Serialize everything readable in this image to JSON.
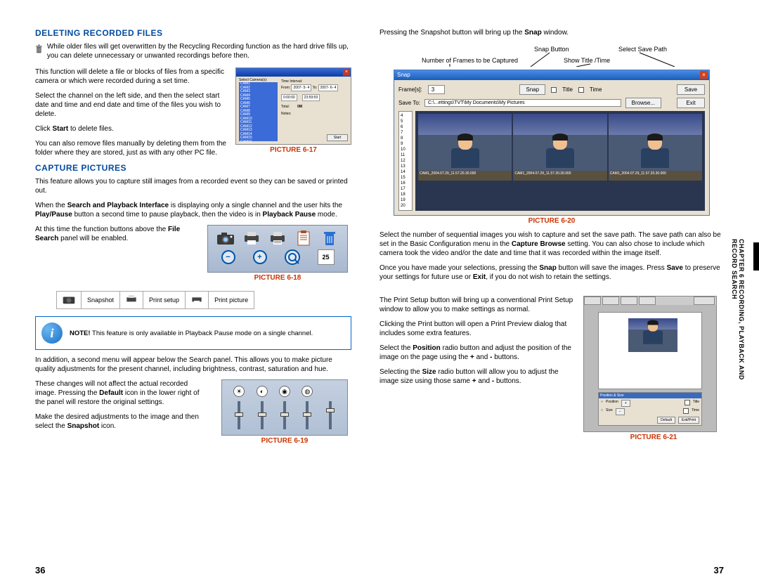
{
  "left": {
    "delete_heading": "DELETING RECORDED FILES",
    "delete_intro": "While older files will get overwritten by the Recycling Recording function as the hard drive fills up, you can delete unnecessary or unwanted recordings before then.",
    "delete_p1": "This function will delete a file or blocks of files from a specific camera or which were recorded during a set time.",
    "delete_p2": "Select the channel on the left side, and then the select start date and time and end date and time of the files you wish to delete.",
    "delete_p3_pre": "Click ",
    "delete_p3_bold": "Start",
    "delete_p3_post": " to delete files.",
    "delete_p4": "You can also remove files manually by deleting them from the folder where they are stored, just as with any other PC file.",
    "pic617": "PICTURE 6-17",
    "capture_heading": "CAPTURE PICTURES",
    "capture_p1": "This feature allows you to capture still images from a recorded event so they can be saved or printed out.",
    "capture_p2a": "When the ",
    "capture_p2b": "Search and Playback Interface",
    "capture_p2c": " is displaying only a single channel and the user hits the ",
    "capture_p2d": "Play/Pause",
    "capture_p2e": " button a second time to pause playback, then the video is in ",
    "capture_p2f": "Playback Pause",
    "capture_p2g": " mode.",
    "capture_p3a": "At this time the function buttons above the ",
    "capture_p3b": "File Search",
    "capture_p3c": " panel will be enabled.",
    "pic618": "PICTURE 6-18",
    "table_snapshot": "Snapshot",
    "table_printsetup": "Print setup",
    "table_printpicture": "Print picture",
    "note_pre": "NOTE!",
    "note_text": " This feature is only available in Playback Pause mode on a single channel.",
    "capture_p4": "In addition, a second menu will appear below the Search panel. This allows you to make picture quality adjustments for the present channel, including brightness, contrast, saturation and hue.",
    "capture_p5a": "These changes will not affect the actual recorded image. Pressing the ",
    "capture_p5b": "Default",
    "capture_p5c": " icon in the lower right of the panel will restore the original settings.",
    "capture_p6a": "Make the desired adjustments to the image and then select the ",
    "capture_p6b": "Snapshot",
    "capture_p6c": " icon.",
    "pic619": "PICTURE 6-19",
    "page_num": "36",
    "cam_labels": [
      "CAM1",
      "CAM2",
      "CAM3",
      "CAM4",
      "CAM5",
      "CAM6",
      "CAM7",
      "CAM8",
      "CAM9",
      "CAM10",
      "CAM11",
      "CAM12",
      "CAM13",
      "CAM14",
      "CAM15",
      "CAM16"
    ],
    "delete_screenshot": {
      "sel_camera": "Select Camera(s):",
      "time_interval": "Time Interval:",
      "from": "From:",
      "to": "To:",
      "from_date": "2007- 5- 4",
      "to_date": "2007- 6- 4",
      "from_time": "0:00:00",
      "to_time": "23:59:59",
      "total": "Total:",
      "total_val": "0M",
      "notes": "Notes:",
      "start": "Start"
    },
    "cal_num": "25"
  },
  "right": {
    "snap_intro_a": "Pressing the Snapshot button will bring up the ",
    "snap_intro_b": "Snap",
    "snap_intro_c": " window.",
    "annot_frames": "Number of Frames to be Captured",
    "annot_snap": "Snap Button",
    "annot_save": "Select Save Path",
    "annot_show": "Show Title /Time",
    "snap_title": "Snap",
    "frame_label": "Frame[s]:",
    "frame_val": "3",
    "snap_btn": "Snap",
    "title_chk": "Title",
    "time_chk": "Time",
    "save_btn": "Save",
    "saveto_label": "Save To:",
    "saveto_path": "C:\\...ettings\\TVT\\My Documents\\My Pictures",
    "browse_btn": "Browse...",
    "exit_btn": "Exit",
    "num_list": [
      "4",
      "5",
      "6",
      "7",
      "8",
      "9",
      "10",
      "11",
      "12",
      "13",
      "14",
      "15",
      "16",
      "17",
      "18",
      "19",
      "20"
    ],
    "thumb_caption": "CAM1_2004.07.29_11.57.20.30.000",
    "pic620": "PICTURE 6-20",
    "para1a": "Select the number of sequential images you wish to capture and set the save path. The save path can also be set in the Basic Configuration menu in the ",
    "para1b": "Capture Browse",
    "para1c": " setting. You can also chose to include which camera took the video and/or the date and time that it was recorded within the image itself.",
    "para2a": "Once you have made your selections, pressing the ",
    "para2b": "Snap",
    "para2c": " button will save the images. Press ",
    "para2d": "Save",
    "para2e": " to preserve your settings for future use or ",
    "para2f": "Exit",
    "para2g": ", if you do not wish to retain the settings.",
    "print_p1": "The Print Setup button will bring up a conventional Print Setup window to allow you to make settings as normal.",
    "print_p2": "Clicking the Print button will open a Print Preview dialog that includes some extra features.",
    "print_p3a": "Select the ",
    "print_p3b": "Position",
    "print_p3c": " radio button and adjust the position of the image on the page using the ",
    "print_p3d": "+",
    "print_p3e": " and ",
    "print_p3f": "-",
    "print_p3g": " buttons.",
    "print_p4a": "Selecting the ",
    "print_p4b": "Size",
    "print_p4c": " radio button will allow you to adjust the image size using those same ",
    "print_p4d": "+",
    "print_p4e": " and ",
    "print_p4f": "-",
    "print_p4g": " buttons.",
    "pic621": "PICTURE 6-21",
    "page_num": "37",
    "sidebar": "CHAPTER 6   RECORDING, PLAYBACK AND RECORD SEARCH",
    "pp_dialog": {
      "pos_size": "Position & Size",
      "position": "Position",
      "size": "Size",
      "title": "Title",
      "time": "Time",
      "default": "Default",
      "exit_print": "Exit/Print"
    }
  }
}
